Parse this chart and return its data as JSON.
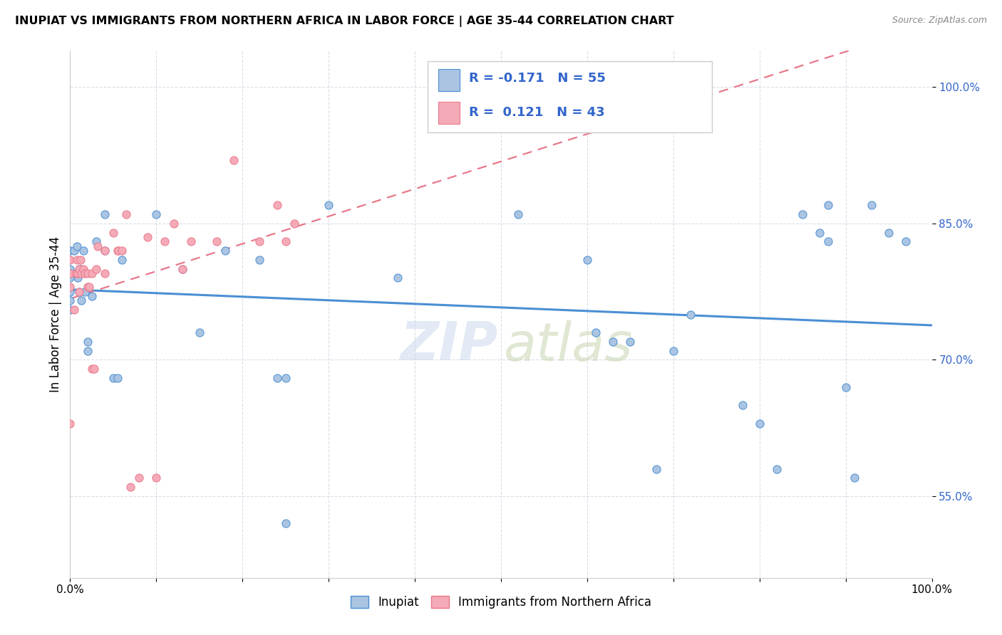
{
  "title": "INUPIAT VS IMMIGRANTS FROM NORTHERN AFRICA IN LABOR FORCE | AGE 35-44 CORRELATION CHART",
  "source": "Source: ZipAtlas.com",
  "ylabel": "In Labor Force | Age 35-44",
  "xlim": [
    0,
    1.0
  ],
  "ylim": [
    0.46,
    1.04
  ],
  "y_ticks": [
    0.55,
    0.7,
    0.85,
    1.0
  ],
  "y_tick_labels": [
    "55.0%",
    "70.0%",
    "85.0%",
    "100.0%"
  ],
  "x_ticks": [
    0.0,
    0.1,
    0.2,
    0.3,
    0.4,
    0.5,
    0.6,
    0.7,
    0.8,
    0.9,
    1.0
  ],
  "x_tick_labels": [
    "0.0%",
    "",
    "",
    "",
    "",
    "",
    "",
    "",
    "",
    "",
    "100.0%"
  ],
  "inupiat_R": -0.171,
  "inupiat_N": 55,
  "immigrants_R": 0.121,
  "immigrants_N": 43,
  "inupiat_color": "#aac4e2",
  "immigrants_color": "#f5aab8",
  "inupiat_line_color": "#4a8fd4",
  "immigrants_line_color": "#e8788a",
  "tick_color": "#3366cc",
  "grid_color": "#d8dde8",
  "inupiat_x": [
    0.0,
    0.0,
    0.0,
    0.0,
    0.0,
    0.0,
    0.005,
    0.007,
    0.008,
    0.009,
    0.01,
    0.01,
    0.012,
    0.013,
    0.015,
    0.017,
    0.02,
    0.02,
    0.025,
    0.03,
    0.04,
    0.04,
    0.05,
    0.055,
    0.06,
    0.1,
    0.13,
    0.15,
    0.18,
    0.22,
    0.24,
    0.25,
    0.25,
    0.3,
    0.38,
    0.52,
    0.6,
    0.61,
    0.63,
    0.65,
    0.68,
    0.7,
    0.72,
    0.78,
    0.8,
    0.82,
    0.85,
    0.87,
    0.88,
    0.88,
    0.9,
    0.91,
    0.93,
    0.95,
    0.97
  ],
  "inupiat_y": [
    0.82,
    0.8,
    0.79,
    0.775,
    0.765,
    0.755,
    0.82,
    0.795,
    0.825,
    0.79,
    0.8,
    0.775,
    0.8,
    0.765,
    0.82,
    0.775,
    0.72,
    0.71,
    0.77,
    0.83,
    0.86,
    0.82,
    0.68,
    0.68,
    0.81,
    0.86,
    0.8,
    0.73,
    0.82,
    0.81,
    0.68,
    0.68,
    0.52,
    0.87,
    0.79,
    0.86,
    0.81,
    0.73,
    0.72,
    0.72,
    0.58,
    0.71,
    0.75,
    0.65,
    0.63,
    0.58,
    0.86,
    0.84,
    0.87,
    0.83,
    0.67,
    0.57,
    0.87,
    0.84,
    0.83
  ],
  "immigrants_x": [
    0.0,
    0.0,
    0.0,
    0.0,
    0.005,
    0.007,
    0.008,
    0.009,
    0.01,
    0.01,
    0.012,
    0.013,
    0.015,
    0.017,
    0.02,
    0.02,
    0.022,
    0.025,
    0.025,
    0.028,
    0.03,
    0.032,
    0.04,
    0.04,
    0.05,
    0.055,
    0.056,
    0.06,
    0.065,
    0.07,
    0.08,
    0.09,
    0.1,
    0.11,
    0.12,
    0.13,
    0.14,
    0.17,
    0.19,
    0.22,
    0.24,
    0.25,
    0.26
  ],
  "immigrants_y": [
    0.63,
    0.795,
    0.81,
    0.78,
    0.755,
    0.795,
    0.81,
    0.795,
    0.8,
    0.775,
    0.81,
    0.795,
    0.8,
    0.795,
    0.795,
    0.78,
    0.78,
    0.795,
    0.69,
    0.69,
    0.8,
    0.825,
    0.82,
    0.795,
    0.84,
    0.82,
    0.82,
    0.82,
    0.86,
    0.56,
    0.57,
    0.835,
    0.57,
    0.83,
    0.85,
    0.8,
    0.83,
    0.83,
    0.92,
    0.83,
    0.87,
    0.83,
    0.85
  ]
}
